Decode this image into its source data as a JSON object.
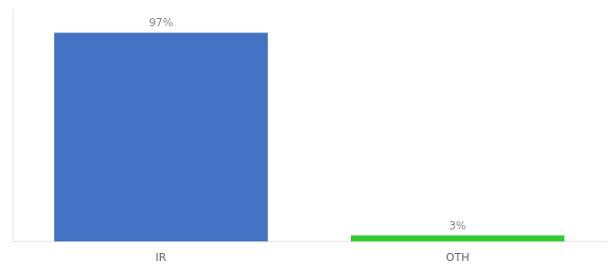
{
  "chart_data": {
    "type": "bar",
    "categories": [
      "IR",
      "OTH"
    ],
    "values": [
      97,
      3
    ],
    "value_labels": [
      "97%",
      "3%"
    ],
    "colors": [
      "#4472c4",
      "#33cc33"
    ],
    "ylim": [
      0,
      108
    ],
    "yticks": [],
    "grid": false,
    "data_labels": true,
    "tick_labels": "x"
  }
}
